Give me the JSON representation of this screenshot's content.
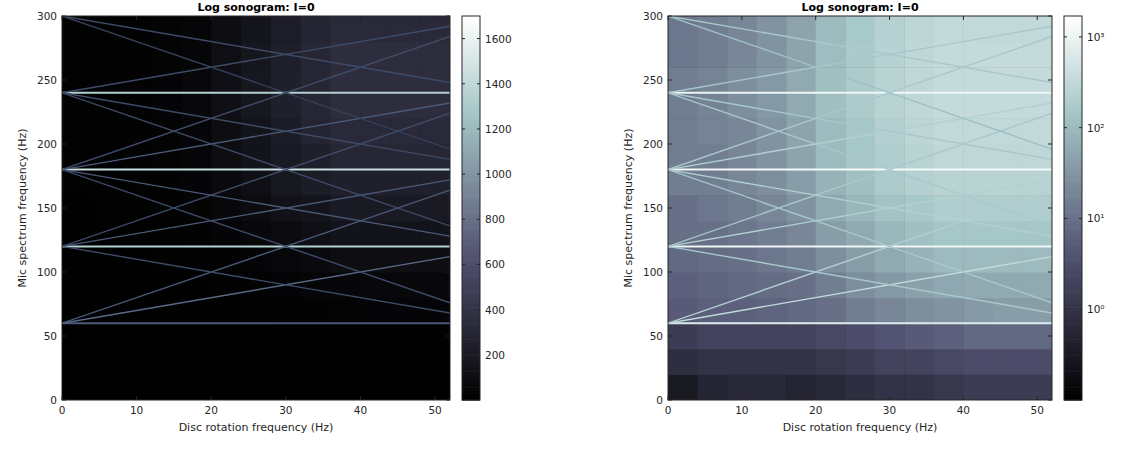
{
  "chart_data": [
    {
      "type": "heatmap",
      "title": "Log sonogram: I=0",
      "x_label": "Disc rotation frequency (Hz)",
      "y_label": "Mic spectrum frequency (Hz)",
      "xlim": [
        0,
        52
      ],
      "ylim": [
        0,
        300
      ],
      "xticks": [
        0,
        10,
        20,
        30,
        40,
        50
      ],
      "yticks": [
        0,
        50,
        100,
        150,
        200,
        250,
        300
      ],
      "x_bins": [
        0,
        4,
        8,
        12,
        16,
        20,
        24,
        28,
        32,
        36,
        40,
        44,
        48,
        52
      ],
      "y_bins": [
        0,
        20,
        40,
        60,
        80,
        100,
        120,
        140,
        160,
        180,
        200,
        220,
        240,
        260,
        280,
        300
      ],
      "cells": [
        [
          0.3,
          0.5,
          0.6,
          0.6,
          0.5,
          0.6,
          0.8,
          1,
          1,
          1.2,
          1.5,
          1.5,
          1.5
        ],
        [
          0.8,
          1,
          1,
          1,
          1,
          1.2,
          1.5,
          2,
          2,
          2.5,
          3,
          3,
          3
        ],
        [
          1.5,
          2,
          2,
          2,
          2,
          2.5,
          3,
          4,
          5,
          6,
          8,
          8,
          8
        ],
        [
          5,
          6,
          6,
          7,
          8,
          10,
          15,
          20,
          25,
          30,
          35,
          40,
          40
        ],
        [
          6,
          7,
          8,
          9,
          10,
          15,
          25,
          35,
          45,
          55,
          60,
          60,
          60
        ],
        [
          8,
          9,
          10,
          12,
          15,
          25,
          40,
          60,
          80,
          100,
          100,
          100,
          100
        ],
        [
          10,
          10,
          12,
          15,
          20,
          40,
          60,
          90,
          120,
          150,
          150,
          150,
          150
        ],
        [
          10,
          12,
          15,
          20,
          30,
          60,
          90,
          130,
          160,
          200,
          200,
          200,
          200
        ],
        [
          15,
          15,
          20,
          25,
          40,
          80,
          120,
          180,
          220,
          250,
          250,
          250,
          250
        ],
        [
          15,
          15,
          20,
          30,
          50,
          100,
          150,
          200,
          250,
          300,
          300,
          300,
          300
        ],
        [
          15,
          18,
          20,
          30,
          50,
          100,
          150,
          220,
          280,
          320,
          320,
          320,
          320
        ],
        [
          15,
          18,
          25,
          35,
          60,
          120,
          180,
          250,
          300,
          350,
          350,
          350,
          350
        ],
        [
          15,
          18,
          25,
          35,
          60,
          120,
          180,
          250,
          300,
          350,
          350,
          350,
          350
        ],
        [
          12,
          15,
          20,
          30,
          50,
          110,
          170,
          240,
          300,
          350,
          350,
          350,
          350
        ],
        [
          12,
          15,
          20,
          30,
          50,
          100,
          160,
          230,
          280,
          320,
          320,
          320,
          320
        ]
      ],
      "series": [
        {
          "type": "line",
          "color": "#4a5a78",
          "x": [
            0,
            52
          ],
          "values": [
            60,
            60
          ]
        },
        {
          "type": "line",
          "color": "#b4d2d2",
          "x": [
            0,
            52
          ],
          "values": [
            120,
            120
          ]
        },
        {
          "type": "line",
          "color": "#c8e0e0",
          "x": [
            0,
            52
          ],
          "values": [
            180,
            180
          ]
        },
        {
          "type": "line",
          "color": "#b4d2d2",
          "x": [
            0,
            52
          ],
          "values": [
            240,
            240
          ]
        },
        {
          "type": "line",
          "color": "#5a6a86",
          "x": [
            0,
            52
          ],
          "values": [
            60,
            112
          ]
        },
        {
          "type": "line",
          "color": "#4a5a78",
          "x": [
            0,
            52
          ],
          "values": [
            60,
            164
          ]
        },
        {
          "type": "line",
          "color": "#4a5a78",
          "x": [
            0,
            52
          ],
          "values": [
            120,
            172
          ]
        },
        {
          "type": "line",
          "color": "#3e4c68",
          "x": [
            0,
            52
          ],
          "values": [
            120,
            224
          ]
        },
        {
          "type": "line",
          "color": "#3e4c68",
          "x": [
            0,
            52
          ],
          "values": [
            120,
            68
          ]
        },
        {
          "type": "line",
          "color": "#4a5a78",
          "x": [
            0,
            52
          ],
          "values": [
            180,
            128
          ]
        },
        {
          "type": "line",
          "color": "#3e4c68",
          "x": [
            0,
            52
          ],
          "values": [
            180,
            76
          ]
        },
        {
          "type": "line",
          "color": "#4a5a78",
          "x": [
            0,
            52
          ],
          "values": [
            180,
            232
          ]
        },
        {
          "type": "line",
          "color": "#3e4c68",
          "x": [
            0,
            52
          ],
          "values": [
            180,
            284
          ]
        },
        {
          "type": "line",
          "color": "#3e4c68",
          "x": [
            0,
            52
          ],
          "values": [
            240,
            292
          ]
        },
        {
          "type": "line",
          "color": "#3e4c68",
          "x": [
            0,
            52
          ],
          "values": [
            240,
            188
          ]
        },
        {
          "type": "line",
          "color": "#3e4c68",
          "x": [
            0,
            52
          ],
          "values": [
            240,
            136
          ]
        },
        {
          "type": "line",
          "color": "#3e4c68",
          "x": [
            0,
            52
          ],
          "values": [
            300,
            248
          ]
        },
        {
          "type": "line",
          "color": "#36425c",
          "x": [
            0,
            52
          ],
          "values": [
            300,
            196
          ]
        }
      ],
      "colorbar": {
        "lim": [
          0,
          1700
        ],
        "ticks": [
          200,
          400,
          600,
          800,
          1000,
          1200,
          1400,
          1600
        ]
      }
    },
    {
      "type": "heatmap",
      "title": "Log sonogram: I=0",
      "x_label": "Disc rotation frequency (Hz)",
      "y_label": "Mic spectrum frequency (Hz)",
      "xlim": [
        0,
        52
      ],
      "ylim": [
        0,
        300
      ],
      "xticks": [
        0,
        10,
        20,
        30,
        40,
        50
      ],
      "yticks": [
        0,
        50,
        100,
        150,
        200,
        250,
        300
      ],
      "x_bins": [
        0,
        4,
        8,
        12,
        16,
        20,
        24,
        28,
        32,
        36,
        40,
        44,
        48,
        52
      ],
      "y_bins": [
        0,
        20,
        40,
        60,
        80,
        100,
        120,
        140,
        160,
        180,
        200,
        220,
        240,
        260,
        280,
        300
      ],
      "cells": [
        [
          0.3,
          0.5,
          0.6,
          0.6,
          0.5,
          0.6,
          0.8,
          1,
          1,
          1.2,
          1.5,
          1.5,
          1.5
        ],
        [
          0.8,
          1,
          1,
          1,
          1,
          1.2,
          1.5,
          2,
          2,
          2.5,
          3,
          3,
          3
        ],
        [
          1.5,
          2,
          2,
          2,
          2,
          2.5,
          3,
          4,
          5,
          6,
          8,
          8,
          8
        ],
        [
          5,
          6,
          6,
          7,
          8,
          10,
          15,
          20,
          25,
          30,
          35,
          40,
          40
        ],
        [
          6,
          7,
          8,
          9,
          10,
          15,
          25,
          35,
          45,
          55,
          60,
          60,
          60
        ],
        [
          8,
          9,
          10,
          12,
          15,
          25,
          40,
          60,
          80,
          100,
          100,
          100,
          100
        ],
        [
          10,
          10,
          12,
          15,
          20,
          40,
          60,
          90,
          120,
          150,
          150,
          150,
          150
        ],
        [
          10,
          12,
          15,
          20,
          30,
          60,
          90,
          130,
          160,
          200,
          200,
          200,
          200
        ],
        [
          15,
          15,
          20,
          25,
          40,
          80,
          120,
          180,
          220,
          250,
          250,
          250,
          250
        ],
        [
          15,
          15,
          20,
          30,
          50,
          100,
          150,
          200,
          250,
          300,
          300,
          300,
          300
        ],
        [
          15,
          18,
          20,
          30,
          50,
          100,
          150,
          220,
          280,
          320,
          320,
          320,
          320
        ],
        [
          15,
          18,
          25,
          35,
          60,
          120,
          180,
          250,
          300,
          350,
          350,
          350,
          350
        ],
        [
          15,
          18,
          25,
          35,
          60,
          120,
          180,
          250,
          300,
          350,
          350,
          350,
          350
        ],
        [
          12,
          15,
          20,
          30,
          50,
          110,
          170,
          240,
          300,
          350,
          350,
          350,
          350
        ],
        [
          12,
          15,
          20,
          30,
          50,
          100,
          160,
          230,
          280,
          320,
          320,
          320,
          320
        ]
      ],
      "series": [
        {
          "type": "line",
          "color": "#dcecec",
          "x": [
            0,
            52
          ],
          "values": [
            60,
            60
          ]
        },
        {
          "type": "line",
          "color": "#eef6f6",
          "x": [
            0,
            52
          ],
          "values": [
            120,
            120
          ]
        },
        {
          "type": "line",
          "color": "#f4fafa",
          "x": [
            0,
            52
          ],
          "values": [
            180,
            180
          ]
        },
        {
          "type": "line",
          "color": "#eef6f6",
          "x": [
            0,
            52
          ],
          "values": [
            240,
            240
          ]
        },
        {
          "type": "line",
          "color": "#c2dcdc",
          "x": [
            0,
            52
          ],
          "values": [
            60,
            112
          ]
        },
        {
          "type": "line",
          "color": "#b2d0d2",
          "x": [
            0,
            52
          ],
          "values": [
            60,
            164
          ]
        },
        {
          "type": "line",
          "color": "#b2d0d2",
          "x": [
            0,
            52
          ],
          "values": [
            120,
            172
          ]
        },
        {
          "type": "line",
          "color": "#a8c8cc",
          "x": [
            0,
            52
          ],
          "values": [
            120,
            224
          ]
        },
        {
          "type": "line",
          "color": "#a8c8cc",
          "x": [
            0,
            52
          ],
          "values": [
            120,
            68
          ]
        },
        {
          "type": "line",
          "color": "#b2d0d2",
          "x": [
            0,
            52
          ],
          "values": [
            180,
            128
          ]
        },
        {
          "type": "line",
          "color": "#a8c8cc",
          "x": [
            0,
            52
          ],
          "values": [
            180,
            76
          ]
        },
        {
          "type": "line",
          "color": "#b2d0d2",
          "x": [
            0,
            52
          ],
          "values": [
            180,
            232
          ]
        },
        {
          "type": "line",
          "color": "#a8c8cc",
          "x": [
            0,
            52
          ],
          "values": [
            180,
            284
          ]
        },
        {
          "type": "line",
          "color": "#a8c8cc",
          "x": [
            0,
            52
          ],
          "values": [
            240,
            292
          ]
        },
        {
          "type": "line",
          "color": "#a8c8cc",
          "x": [
            0,
            52
          ],
          "values": [
            240,
            188
          ]
        },
        {
          "type": "line",
          "color": "#a8c8cc",
          "x": [
            0,
            52
          ],
          "values": [
            240,
            136
          ]
        },
        {
          "type": "line",
          "color": "#a8c8cc",
          "x": [
            0,
            52
          ],
          "values": [
            300,
            248
          ]
        },
        {
          "type": "line",
          "color": "#9ec0c6",
          "x": [
            0,
            52
          ],
          "values": [
            300,
            196
          ]
        }
      ],
      "colorbar": {
        "log": true,
        "lim": [
          0.1,
          1700
        ],
        "ticks": [
          {
            "value": 1,
            "label": "10⁰"
          },
          {
            "value": 10,
            "label": "10¹"
          },
          {
            "value": 100,
            "label": "10²"
          },
          {
            "value": 1000,
            "label": "10³"
          }
        ]
      }
    }
  ]
}
